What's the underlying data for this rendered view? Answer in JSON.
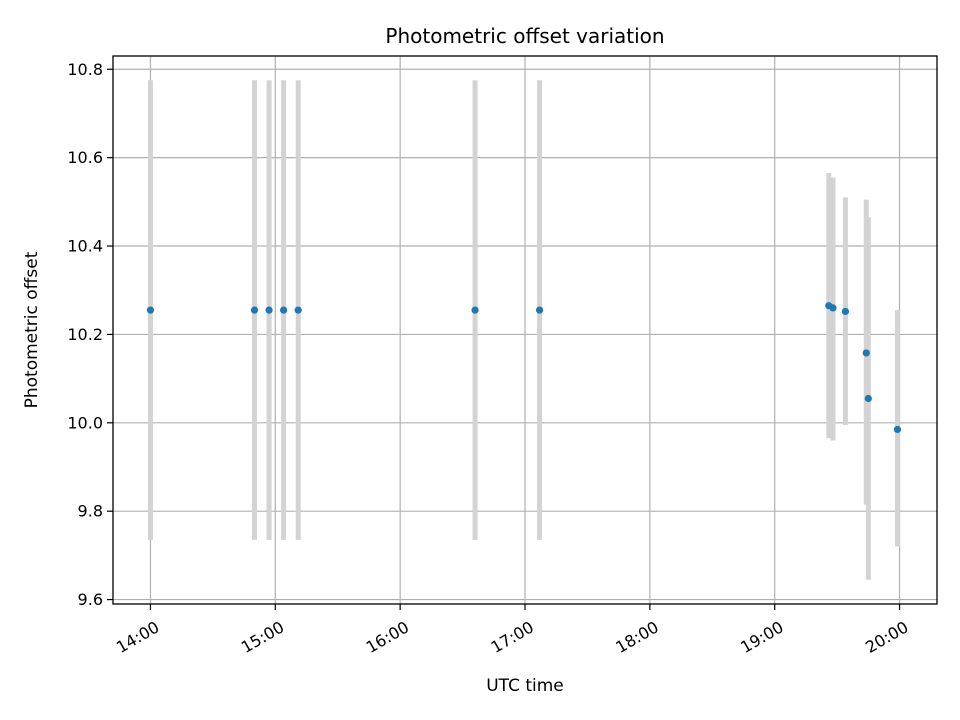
{
  "chart_data": {
    "type": "scatter",
    "title": "Photometric offset variation",
    "xlabel": "UTC time",
    "ylabel": "Photometric offset",
    "x_axis_type": "time",
    "xlim": [
      "13:42",
      "20:18"
    ],
    "ylim": [
      9.59,
      10.83
    ],
    "x_ticks": [
      "14:00",
      "15:00",
      "16:00",
      "17:00",
      "18:00",
      "19:00",
      "20:00"
    ],
    "y_ticks": [
      "9.6",
      "9.8",
      "10.0",
      "10.2",
      "10.4",
      "10.6",
      "10.8"
    ],
    "grid": true,
    "legend": false,
    "colors": {
      "point": "#1f77b4",
      "error_bar": "#d3d3d3",
      "grid": "#b0b0b0",
      "axes": "#000000"
    },
    "series": [
      {
        "error_bars": true,
        "points": [
          {
            "x": "14:00",
            "y": 10.255,
            "ylow": 9.735,
            "yhigh": 10.775
          },
          {
            "x": "14:50",
            "y": 10.255,
            "ylow": 9.735,
            "yhigh": 10.775
          },
          {
            "x": "14:57",
            "y": 10.255,
            "ylow": 9.735,
            "yhigh": 10.775
          },
          {
            "x": "15:04",
            "y": 10.255,
            "ylow": 9.735,
            "yhigh": 10.775
          },
          {
            "x": "15:11",
            "y": 10.255,
            "ylow": 9.735,
            "yhigh": 10.775
          },
          {
            "x": "16:36",
            "y": 10.255,
            "ylow": 9.735,
            "yhigh": 10.775
          },
          {
            "x": "17:07",
            "y": 10.255,
            "ylow": 9.735,
            "yhigh": 10.775
          },
          {
            "x": "19:26",
            "y": 10.265,
            "ylow": 9.965,
            "yhigh": 10.565
          },
          {
            "x": "19:28",
            "y": 10.26,
            "ylow": 9.96,
            "yhigh": 10.555
          },
          {
            "x": "19:34",
            "y": 10.252,
            "ylow": 9.995,
            "yhigh": 10.51
          },
          {
            "x": "19:44",
            "y": 10.158,
            "ylow": 9.815,
            "yhigh": 10.505
          },
          {
            "x": "19:45",
            "y": 10.055,
            "ylow": 9.645,
            "yhigh": 10.465
          },
          {
            "x": "19:59",
            "y": 9.985,
            "ylow": 9.72,
            "yhigh": 10.255
          }
        ]
      }
    ]
  }
}
